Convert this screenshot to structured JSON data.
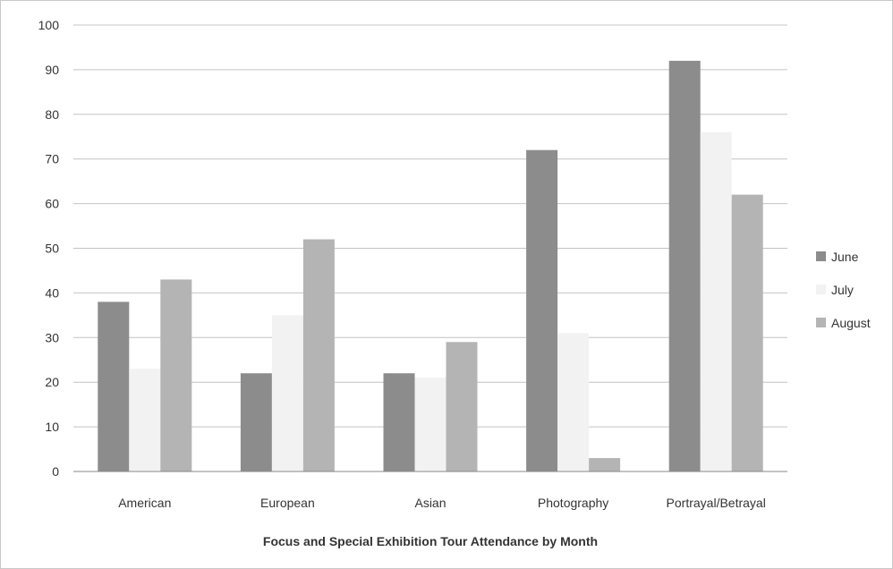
{
  "chart_data": {
    "type": "bar",
    "title": "Focus and Special Exhibition Tour Attendance by Month",
    "xlabel": "",
    "ylabel": "",
    "ylim": [
      0,
      100
    ],
    "yticks": [
      0,
      10,
      20,
      30,
      40,
      50,
      60,
      70,
      80,
      90,
      100
    ],
    "grid": true,
    "legend_position": "right",
    "categories": [
      "American",
      "European",
      "Asian",
      "Photography",
      "Portrayal/Betrayal"
    ],
    "series": [
      {
        "name": "June",
        "color": "#8c8c8c",
        "values": [
          38,
          22,
          22,
          72,
          92
        ]
      },
      {
        "name": "July",
        "color": "#f2f2f2",
        "values": [
          23,
          35,
          21,
          31,
          76
        ]
      },
      {
        "name": "August",
        "color": "#b4b4b4",
        "values": [
          43,
          52,
          29,
          3,
          62
        ]
      }
    ]
  }
}
